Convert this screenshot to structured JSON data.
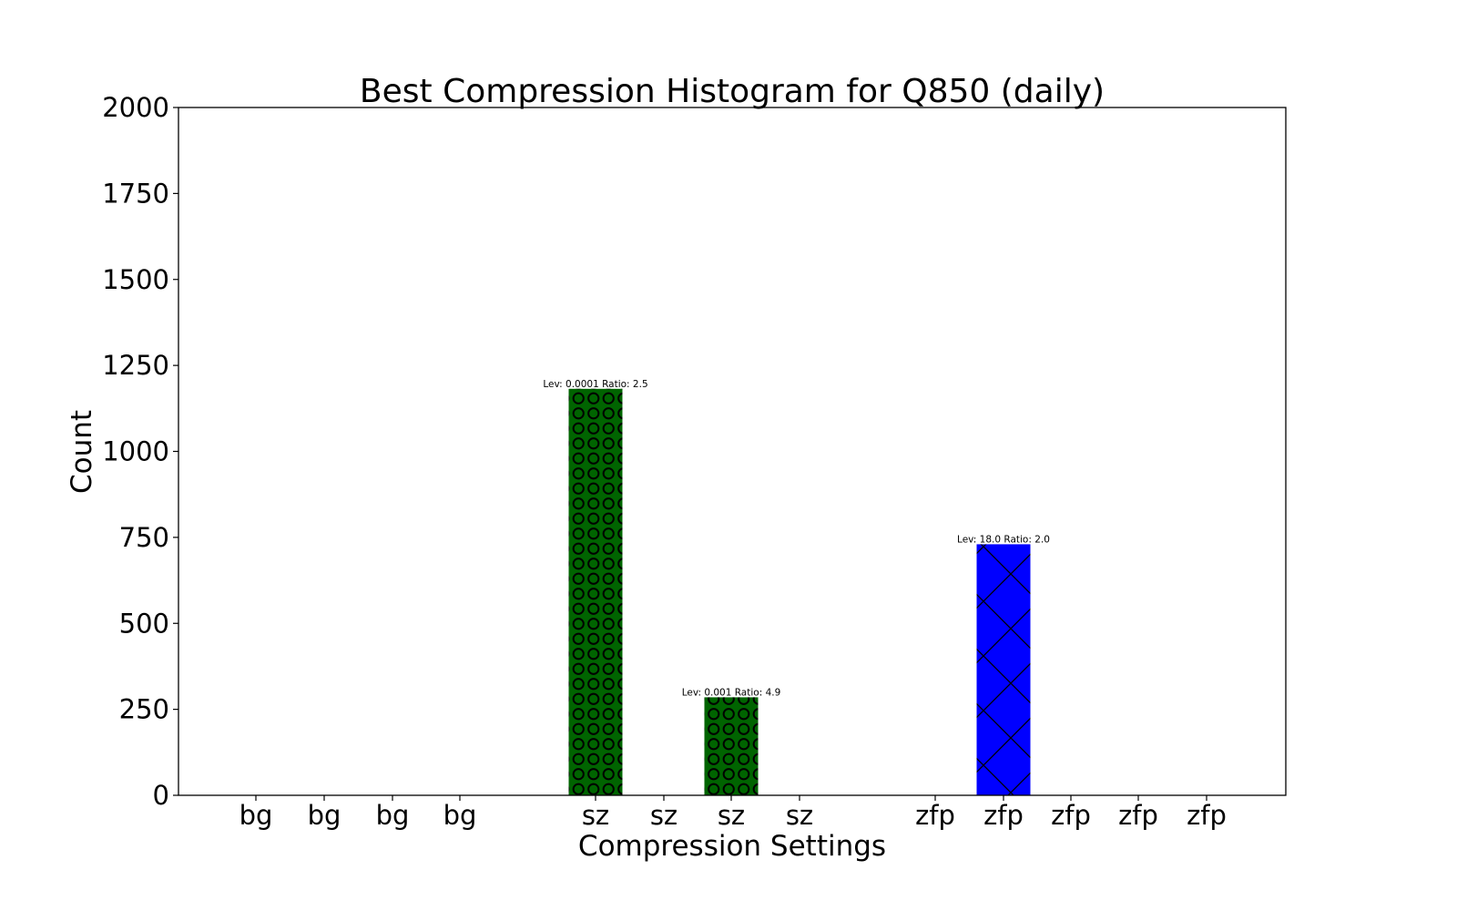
{
  "chart_data": {
    "type": "bar",
    "title": "Best Compression Histogram for Q850 (daily)",
    "xlabel": "Compression Settings",
    "ylabel": "Count",
    "ylim": [
      0,
      2000
    ],
    "yticks": [
      0,
      250,
      500,
      750,
      1000,
      1250,
      1500,
      1750,
      2000
    ],
    "grid": false,
    "categories": [
      "bg",
      "bg",
      "bg",
      "bg",
      "sz",
      "sz",
      "sz",
      "sz",
      "zfp",
      "zfp",
      "zfp",
      "zfp",
      "zfp"
    ],
    "values": [
      0,
      0,
      0,
      0,
      1182,
      0,
      285,
      0,
      0,
      730,
      0,
      0,
      0
    ],
    "bar_colors": [
      "#008000",
      "#008000",
      "#008000",
      "#008000",
      "#006400",
      "#006400",
      "#006400",
      "#006400",
      "#0000ff",
      "#0000ff",
      "#0000ff",
      "#0000ff",
      "#0000ff"
    ],
    "bar_hatches": [
      "",
      "",
      "",
      "",
      "circles",
      "",
      "circles",
      "",
      "",
      "crosshatch",
      "",
      "",
      ""
    ],
    "bar_labels": [
      "",
      "",
      "",
      "",
      "Lev: 0.0001 Ratio: 2.5",
      "",
      "Lev: 0.001 Ratio: 4.9",
      "",
      "",
      "Lev: 18.0 Ratio: 2.0",
      "",
      "",
      ""
    ]
  }
}
